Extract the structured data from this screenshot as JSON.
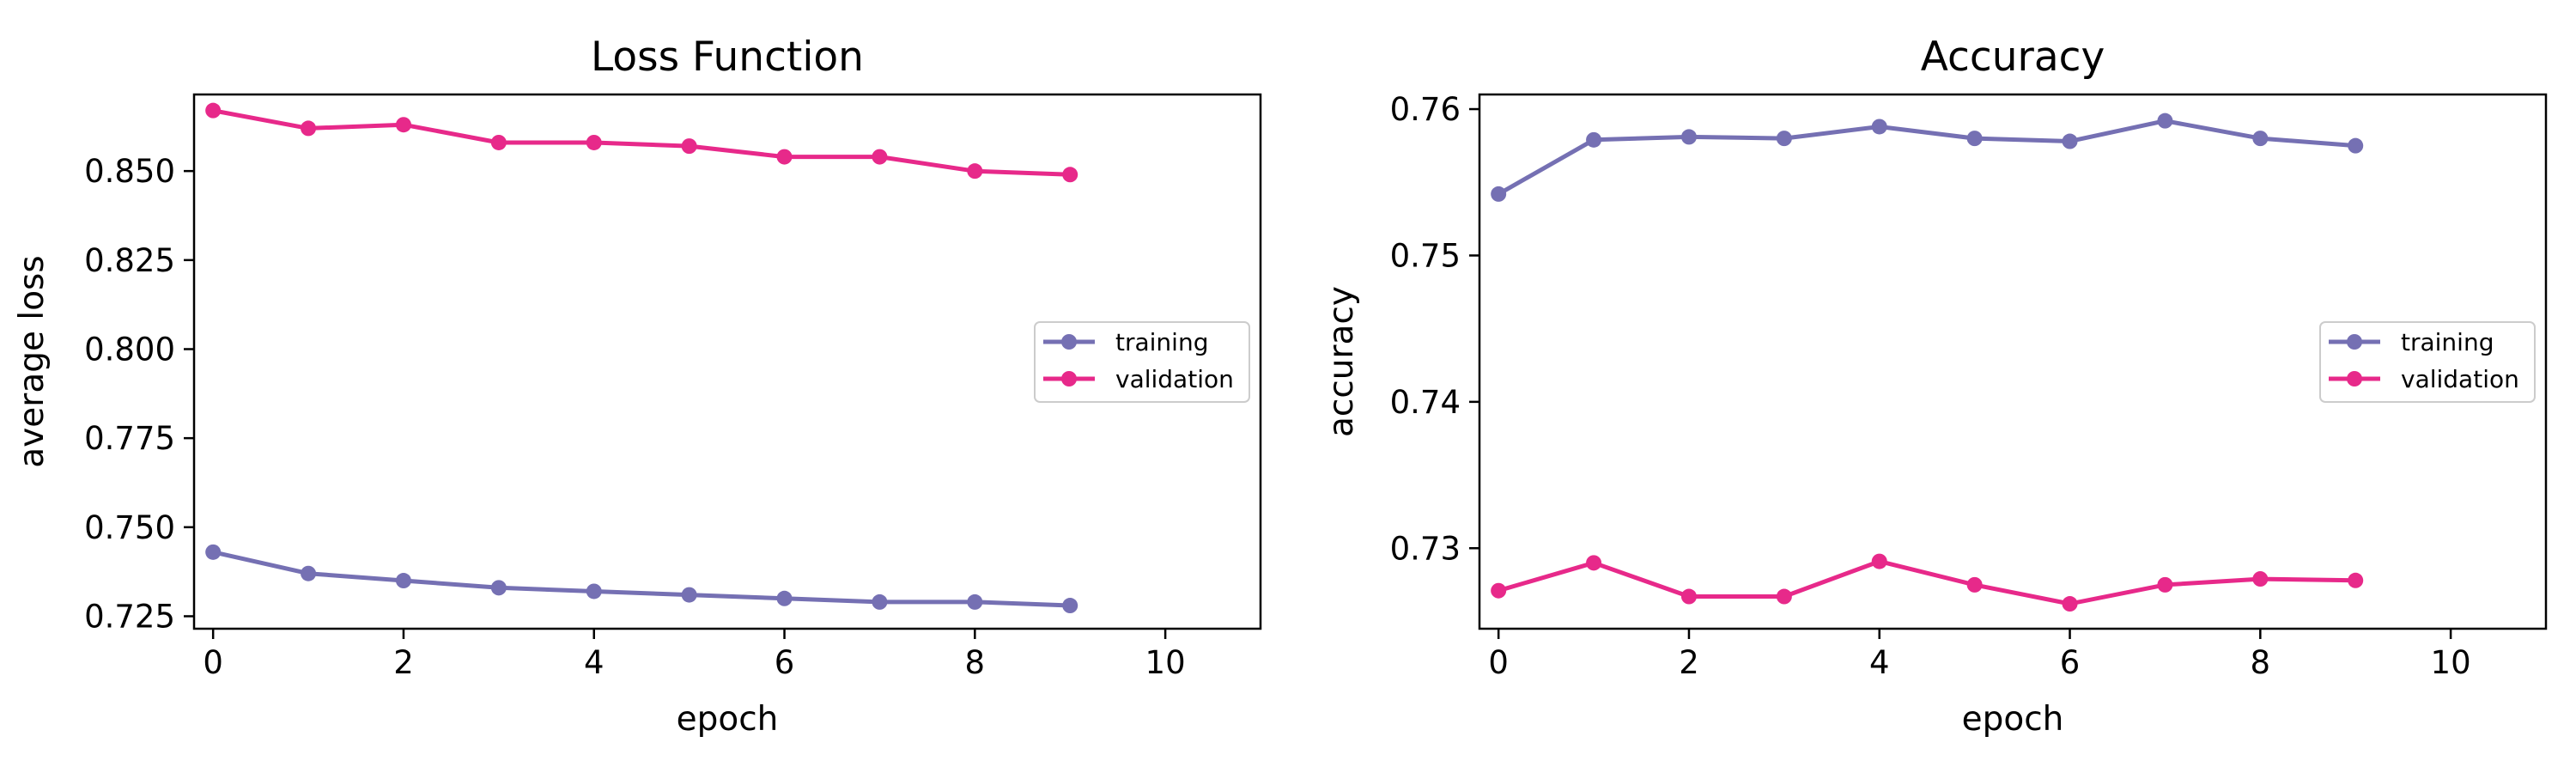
{
  "colors": {
    "training": "#7570b3",
    "validation": "#e7298a"
  },
  "chart_data": [
    {
      "type": "line",
      "title": "Loss Function",
      "xlabel": "epoch",
      "ylabel": "average loss",
      "xlim": [
        -0.2,
        11
      ],
      "ylim": [
        0.7215,
        0.8715
      ],
      "xticks": [
        0,
        2,
        4,
        6,
        8,
        10
      ],
      "yticks": [
        0.725,
        0.75,
        0.775,
        0.8,
        0.825,
        0.85
      ],
      "ytick_labels": [
        "0.725",
        "0.750",
        "0.775",
        "0.800",
        "0.825",
        "0.850"
      ],
      "grid": false,
      "legend": "center-right",
      "x": [
        0,
        1,
        2,
        3,
        4,
        5,
        6,
        7,
        8,
        9
      ],
      "series": [
        {
          "name": "training",
          "color_key": "training",
          "values": [
            0.743,
            0.737,
            0.735,
            0.733,
            0.732,
            0.731,
            0.73,
            0.729,
            0.729,
            0.728
          ]
        },
        {
          "name": "validation",
          "color_key": "validation",
          "values": [
            0.867,
            0.862,
            0.863,
            0.858,
            0.858,
            0.857,
            0.854,
            0.854,
            0.85,
            0.849
          ]
        }
      ]
    },
    {
      "type": "line",
      "title": "Accuracy",
      "xlabel": "epoch",
      "ylabel": "accuracy",
      "xlim": [
        -0.2,
        11
      ],
      "ylim": [
        0.7245,
        0.761
      ],
      "xticks": [
        0,
        2,
        4,
        6,
        8,
        10
      ],
      "yticks": [
        0.73,
        0.74,
        0.75,
        0.76
      ],
      "ytick_labels": [
        "0.73",
        "0.74",
        "0.75",
        "0.76"
      ],
      "grid": false,
      "legend": "center-right",
      "x": [
        0,
        1,
        2,
        3,
        4,
        5,
        6,
        7,
        8,
        9
      ],
      "series": [
        {
          "name": "training",
          "color_key": "training",
          "values": [
            0.7542,
            0.7579,
            0.7581,
            0.758,
            0.7588,
            0.758,
            0.7578,
            0.7592,
            0.758,
            0.7575
          ]
        },
        {
          "name": "validation",
          "color_key": "validation",
          "values": [
            0.7271,
            0.729,
            0.7267,
            0.7267,
            0.7291,
            0.7275,
            0.7262,
            0.7275,
            0.7279,
            0.7278
          ]
        }
      ]
    }
  ]
}
